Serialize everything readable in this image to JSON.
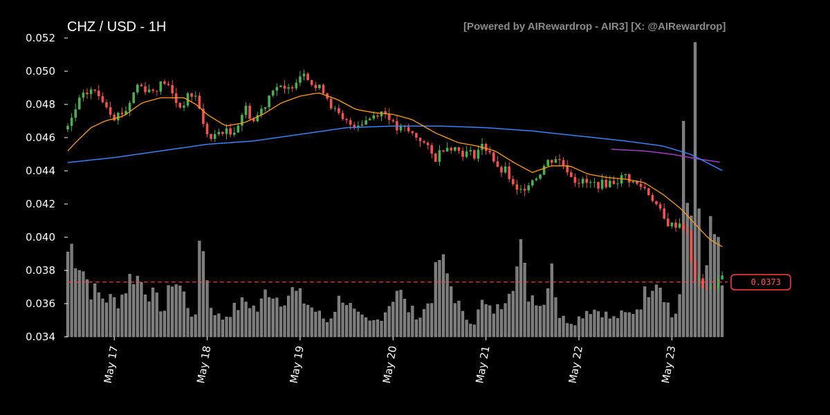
{
  "header": {
    "title": "CHZ / USD - 1H",
    "credit": "[Powered by AIRewardrop - AIR3] [X: @AIRewardrop]"
  },
  "colors": {
    "background": "#000000",
    "up": "#4caf50",
    "down": "#ef5350",
    "volume": "#7a7a7a",
    "ma_short": "#ff9f1a",
    "ma_mid": "#3b82f6",
    "ma_long": "#a040c0",
    "price_line": "#ff4040"
  },
  "chart_data": {
    "type": "candlestick",
    "title": "CHZ / USD - 1H",
    "interval": "1H",
    "ylim": [
      0.034,
      0.052
    ],
    "yticks": [
      "0.034",
      "0.036",
      "0.038",
      "0.040",
      "0.042",
      "0.044",
      "0.046",
      "0.048",
      "0.050",
      "0.052"
    ],
    "xlim": [
      16.5,
      23.6
    ],
    "xticks": [
      {
        "value": 17,
        "label": "May 17"
      },
      {
        "value": 18,
        "label": "May 18"
      },
      {
        "value": 19,
        "label": "May 19"
      },
      {
        "value": 20,
        "label": "May 20"
      },
      {
        "value": 21,
        "label": "May 21"
      },
      {
        "value": 22,
        "label": "May 22"
      },
      {
        "value": 23,
        "label": "May 23"
      }
    ],
    "close_anchors": [
      [
        16.5,
        0.0465
      ],
      [
        16.62,
        0.0482
      ],
      [
        16.75,
        0.0489
      ],
      [
        16.88,
        0.0483
      ],
      [
        17.0,
        0.0473
      ],
      [
        17.12,
        0.0476
      ],
      [
        17.25,
        0.0492
      ],
      [
        17.4,
        0.0488
      ],
      [
        17.55,
        0.0494
      ],
      [
        17.7,
        0.0478
      ],
      [
        17.82,
        0.0486
      ],
      [
        17.9,
        0.0484
      ],
      [
        17.95,
        0.0468
      ],
      [
        18.05,
        0.0458
      ],
      [
        18.15,
        0.0465
      ],
      [
        18.25,
        0.0462
      ],
      [
        18.35,
        0.047
      ],
      [
        18.4,
        0.0479
      ],
      [
        18.5,
        0.047
      ],
      [
        18.62,
        0.048
      ],
      [
        18.72,
        0.0492
      ],
      [
        18.85,
        0.0487
      ],
      [
        18.95,
        0.0495
      ],
      [
        19.05,
        0.0501
      ],
      [
        19.15,
        0.049
      ],
      [
        19.25,
        0.0489
      ],
      [
        19.35,
        0.0478
      ],
      [
        19.45,
        0.047
      ],
      [
        19.55,
        0.0468
      ],
      [
        19.65,
        0.0469
      ],
      [
        19.75,
        0.0472
      ],
      [
        19.85,
        0.0476
      ],
      [
        19.95,
        0.0474
      ],
      [
        20.02,
        0.0465
      ],
      [
        20.12,
        0.0465
      ],
      [
        20.3,
        0.0459
      ],
      [
        20.45,
        0.0447
      ],
      [
        20.55,
        0.0455
      ],
      [
        20.62,
        0.0455
      ],
      [
        20.75,
        0.0451
      ],
      [
        20.88,
        0.045
      ],
      [
        20.95,
        0.0455
      ],
      [
        21.05,
        0.0452
      ],
      [
        21.12,
        0.044
      ],
      [
        21.22,
        0.044
      ],
      [
        21.3,
        0.0429
      ],
      [
        21.35,
        0.0426
      ],
      [
        21.45,
        0.0433
      ],
      [
        21.55,
        0.0437
      ],
      [
        21.65,
        0.0445
      ],
      [
        21.75,
        0.0448
      ],
      [
        21.85,
        0.0443
      ],
      [
        21.95,
        0.0435
      ],
      [
        22.1,
        0.0432
      ],
      [
        22.25,
        0.0432
      ],
      [
        22.4,
        0.0434
      ],
      [
        22.5,
        0.0437
      ],
      [
        22.6,
        0.0432
      ],
      [
        22.7,
        0.043
      ],
      [
        22.8,
        0.0423
      ],
      [
        22.92,
        0.041
      ],
      [
        23.0,
        0.0407
      ],
      [
        23.1,
        0.0409
      ],
      [
        23.18,
        0.0401
      ],
      [
        23.22,
        0.0378
      ],
      [
        23.28,
        0.0373
      ],
      [
        23.35,
        0.0371
      ],
      [
        23.42,
        0.0368
      ],
      [
        23.48,
        0.0373
      ],
      [
        23.55,
        0.0376
      ]
    ],
    "volume": {
      "ylim": [
        0,
        210
      ],
      "anchors": [
        [
          16.5,
          60
        ],
        [
          16.55,
          64
        ],
        [
          16.65,
          50
        ],
        [
          16.75,
          33
        ],
        [
          16.9,
          27
        ],
        [
          17.05,
          25
        ],
        [
          17.2,
          45
        ],
        [
          17.3,
          38
        ],
        [
          17.42,
          28
        ],
        [
          17.55,
          18
        ],
        [
          17.62,
          42
        ],
        [
          17.72,
          34
        ],
        [
          17.82,
          18
        ],
        [
          17.88,
          12
        ],
        [
          17.93,
          90
        ],
        [
          18.02,
          24
        ],
        [
          18.15,
          12
        ],
        [
          18.3,
          20
        ],
        [
          18.42,
          25
        ],
        [
          18.55,
          18
        ],
        [
          18.65,
          35
        ],
        [
          18.78,
          26
        ],
        [
          18.92,
          32
        ],
        [
          19.05,
          25
        ],
        [
          19.2,
          16
        ],
        [
          19.3,
          10
        ],
        [
          19.45,
          30
        ],
        [
          19.6,
          15
        ],
        [
          19.75,
          10
        ],
        [
          19.85,
          12
        ],
        [
          19.95,
          22
        ],
        [
          20.05,
          35
        ],
        [
          20.15,
          20
        ],
        [
          20.3,
          14
        ],
        [
          20.42,
          30
        ],
        [
          20.5,
          55
        ],
        [
          20.6,
          40
        ],
        [
          20.75,
          15
        ],
        [
          20.88,
          10
        ],
        [
          20.95,
          24
        ],
        [
          21.05,
          18
        ],
        [
          21.15,
          20
        ],
        [
          21.25,
          38
        ],
        [
          21.32,
          45
        ],
        [
          21.38,
          60
        ],
        [
          21.45,
          30
        ],
        [
          21.55,
          28
        ],
        [
          21.62,
          20
        ],
        [
          21.7,
          60
        ],
        [
          21.78,
          15
        ],
        [
          21.85,
          12
        ],
        [
          21.95,
          10
        ],
        [
          22.1,
          20
        ],
        [
          22.25,
          18
        ],
        [
          22.35,
          12
        ],
        [
          22.45,
          15
        ],
        [
          22.55,
          16
        ],
        [
          22.65,
          22
        ],
        [
          22.75,
          35
        ],
        [
          22.82,
          45
        ],
        [
          22.9,
          35
        ],
        [
          23.0,
          14
        ],
        [
          23.08,
          20
        ],
        [
          23.12,
          130
        ],
        [
          23.17,
          90
        ],
        [
          23.22,
          88
        ],
        [
          23.28,
          30
        ],
        [
          23.35,
          38
        ],
        [
          23.42,
          72
        ],
        [
          23.48,
          60
        ],
        [
          23.55,
          25
        ]
      ],
      "spikes": [
        [
          23.24,
          218
        ],
        [
          23.28,
          90
        ],
        [
          23.46,
          72
        ],
        [
          23.5,
          70
        ]
      ]
    },
    "ma_short_anchors": [
      [
        16.5,
        0.0452
      ],
      [
        16.6,
        0.0458
      ],
      [
        16.75,
        0.0466
      ],
      [
        16.9,
        0.047
      ],
      [
        17.1,
        0.0473
      ],
      [
        17.3,
        0.0481
      ],
      [
        17.5,
        0.0484
      ],
      [
        17.75,
        0.0484
      ],
      [
        17.88,
        0.048
      ],
      [
        18.0,
        0.0474
      ],
      [
        18.2,
        0.0467
      ],
      [
        18.4,
        0.0469
      ],
      [
        18.6,
        0.0474
      ],
      [
        18.8,
        0.0481
      ],
      [
        19.0,
        0.0485
      ],
      [
        19.2,
        0.0487
      ],
      [
        19.4,
        0.0483
      ],
      [
        19.6,
        0.0477
      ],
      [
        19.8,
        0.0475
      ],
      [
        20.0,
        0.0474
      ],
      [
        20.2,
        0.0471
      ],
      [
        20.45,
        0.0463
      ],
      [
        20.7,
        0.0457
      ],
      [
        20.9,
        0.0455
      ],
      [
        21.1,
        0.0452
      ],
      [
        21.3,
        0.0445
      ],
      [
        21.5,
        0.0439
      ],
      [
        21.7,
        0.0443
      ],
      [
        21.9,
        0.0443
      ],
      [
        22.1,
        0.0438
      ],
      [
        22.3,
        0.0436
      ],
      [
        22.5,
        0.0435
      ],
      [
        22.7,
        0.0433
      ],
      [
        22.9,
        0.0426
      ],
      [
        23.1,
        0.0417
      ],
      [
        23.25,
        0.0408
      ],
      [
        23.4,
        0.0399
      ],
      [
        23.55,
        0.0394
      ]
    ],
    "ma_mid_anchors": [
      [
        16.5,
        0.0445
      ],
      [
        17.0,
        0.0448
      ],
      [
        17.5,
        0.0452
      ],
      [
        18.0,
        0.0456
      ],
      [
        18.5,
        0.0458
      ],
      [
        19.0,
        0.0462
      ],
      [
        19.5,
        0.0466
      ],
      [
        20.0,
        0.0467
      ],
      [
        20.5,
        0.0467
      ],
      [
        21.0,
        0.0466
      ],
      [
        21.5,
        0.0464
      ],
      [
        22.0,
        0.0461
      ],
      [
        22.5,
        0.0458
      ],
      [
        22.9,
        0.0455
      ],
      [
        23.2,
        0.045
      ],
      [
        23.55,
        0.044
      ]
    ],
    "ma_long_anchors": [
      [
        22.35,
        0.0453
      ],
      [
        22.7,
        0.0452
      ],
      [
        23.0,
        0.045
      ],
      [
        23.3,
        0.0447
      ],
      [
        23.55,
        0.0445
      ]
    ],
    "last_price": 0.0373,
    "last_price_label": "0.0373"
  }
}
